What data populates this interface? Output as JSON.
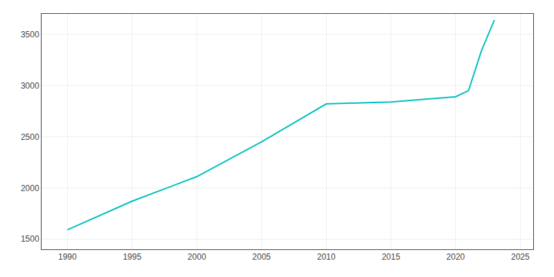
{
  "chart_data": {
    "type": "line",
    "x": [
      1990,
      1995,
      2000,
      2005,
      2010,
      2015,
      2020,
      2021,
      2022,
      2023
    ],
    "values": [
      1590,
      1870,
      2110,
      2450,
      2820,
      2840,
      2890,
      2950,
      3340,
      3640
    ],
    "color": "#00BFBF",
    "xlim": [
      1988,
      2026
    ],
    "ylim": [
      1400,
      3700
    ],
    "xticks": [
      1990,
      1995,
      2000,
      2005,
      2010,
      2015,
      2020,
      2025
    ],
    "yticks": [
      1500,
      2000,
      2500,
      3000,
      3500
    ],
    "grid": true
  }
}
